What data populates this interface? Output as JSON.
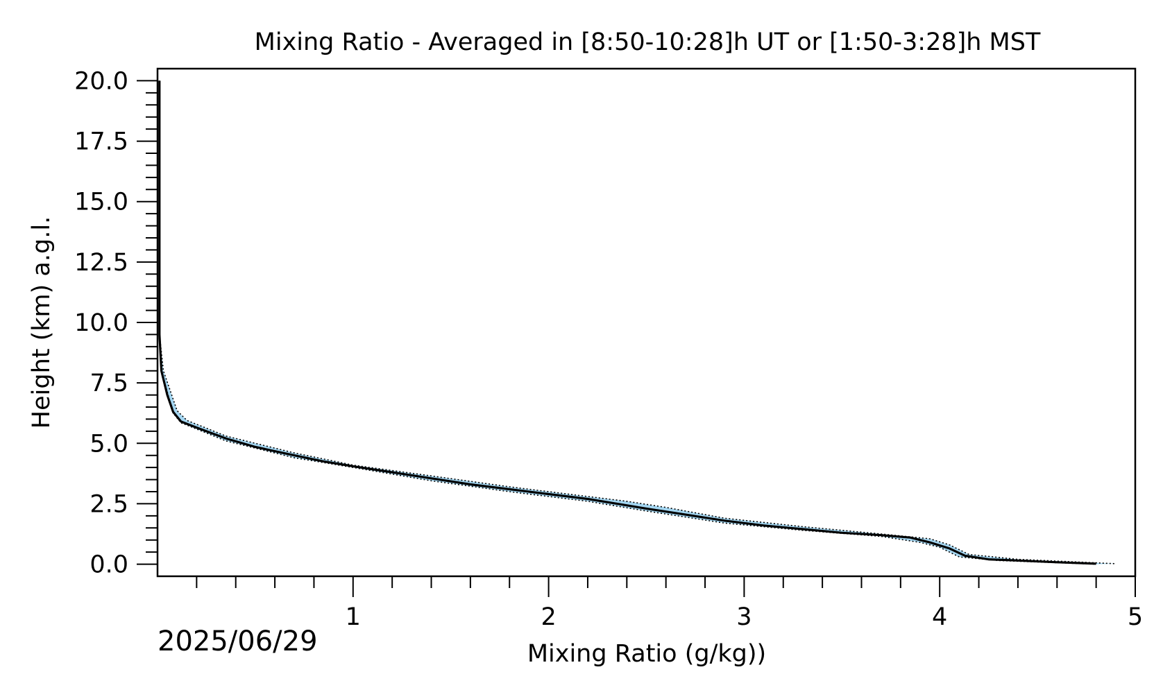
{
  "chart_data": {
    "type": "line",
    "title": "Mixing Ratio - Averaged in [8:50-10:28]h UT or [1:50-3:28]h MST",
    "xlabel": "Mixing Ratio (g/kg))",
    "ylabel": "Height (km) a.g.l.",
    "date_label": "2025/06/29",
    "xlim": [
      0,
      5
    ],
    "ylim": [
      -0.5,
      20.5
    ],
    "x_major_ticks": [
      1,
      2,
      3,
      4,
      5
    ],
    "x_tick_labels": [
      "1",
      "2",
      "3",
      "4",
      "5"
    ],
    "x_minor_step": 0.2,
    "y_major_ticks": [
      0,
      2.5,
      5,
      7.5,
      10,
      12.5,
      15,
      17.5,
      20
    ],
    "y_tick_labels": [
      "0.0",
      "2.5",
      "5.0",
      "7.5",
      "10.0",
      "12.5",
      "15.0",
      "17.5",
      "20.0"
    ],
    "y_minor_step": 0.5,
    "grid": false,
    "colors": {
      "mean_line": "#000000",
      "uncertainty_fill": "#5ab4e6",
      "bound_lines": "#000000"
    },
    "series": [
      {
        "values_note": "",
        "points": [
          [
            0.01,
            20.0
          ],
          [
            0.01,
            15.0
          ],
          [
            0.01,
            12.0
          ],
          [
            0.01,
            10.0
          ],
          [
            0.01,
            9.5
          ],
          [
            0.02,
            8.0
          ],
          [
            0.05,
            7.0
          ],
          [
            0.08,
            6.3
          ],
          [
            0.12,
            5.9
          ],
          [
            0.2,
            5.65
          ],
          [
            0.35,
            5.2
          ],
          [
            0.5,
            4.85
          ],
          [
            0.7,
            4.5
          ],
          [
            0.85,
            4.25
          ],
          [
            1.0,
            4.05
          ],
          [
            1.2,
            3.8
          ],
          [
            1.4,
            3.55
          ],
          [
            1.6,
            3.3
          ],
          [
            1.8,
            3.1
          ],
          [
            2.0,
            2.9
          ],
          [
            2.2,
            2.7
          ],
          [
            2.35,
            2.5
          ],
          [
            2.5,
            2.3
          ],
          [
            2.7,
            2.05
          ],
          [
            2.9,
            1.8
          ],
          [
            3.1,
            1.6
          ],
          [
            3.3,
            1.45
          ],
          [
            3.5,
            1.3
          ],
          [
            3.7,
            1.2
          ],
          [
            3.85,
            1.1
          ],
          [
            3.95,
            0.9
          ],
          [
            4.05,
            0.65
          ],
          [
            4.13,
            0.35
          ],
          [
            4.25,
            0.2
          ],
          [
            4.4,
            0.15
          ],
          [
            4.6,
            0.08
          ],
          [
            4.8,
            0.02
          ]
        ],
        "lower_bound": [
          [
            0.01,
            20.0
          ],
          [
            0.01,
            9.5
          ],
          [
            0.02,
            8.0
          ],
          [
            0.08,
            6.25
          ],
          [
            0.12,
            5.85
          ],
          [
            0.35,
            5.1
          ],
          [
            0.7,
            4.4
          ],
          [
            1.0,
            4.0
          ],
          [
            1.4,
            3.45
          ],
          [
            1.8,
            3.0
          ],
          [
            2.2,
            2.6
          ],
          [
            2.5,
            2.2
          ],
          [
            2.9,
            1.7
          ],
          [
            3.3,
            1.4
          ],
          [
            3.7,
            1.15
          ],
          [
            3.9,
            0.9
          ],
          [
            4.0,
            0.7
          ],
          [
            4.1,
            0.3
          ],
          [
            4.3,
            0.15
          ],
          [
            4.8,
            0.0
          ]
        ],
        "upper_bound": [
          [
            0.01,
            20.0
          ],
          [
            0.01,
            9.5
          ],
          [
            0.03,
            8.0
          ],
          [
            0.1,
            6.35
          ],
          [
            0.15,
            5.95
          ],
          [
            0.35,
            5.3
          ],
          [
            0.7,
            4.6
          ],
          [
            1.0,
            4.1
          ],
          [
            1.4,
            3.65
          ],
          [
            1.8,
            3.2
          ],
          [
            2.2,
            2.8
          ],
          [
            2.4,
            2.6
          ],
          [
            2.6,
            2.35
          ],
          [
            2.9,
            1.9
          ],
          [
            3.3,
            1.55
          ],
          [
            3.7,
            1.25
          ],
          [
            3.95,
            1.05
          ],
          [
            4.05,
            0.8
          ],
          [
            4.15,
            0.4
          ],
          [
            4.4,
            0.2
          ],
          [
            4.9,
            0.02
          ]
        ]
      }
    ]
  }
}
